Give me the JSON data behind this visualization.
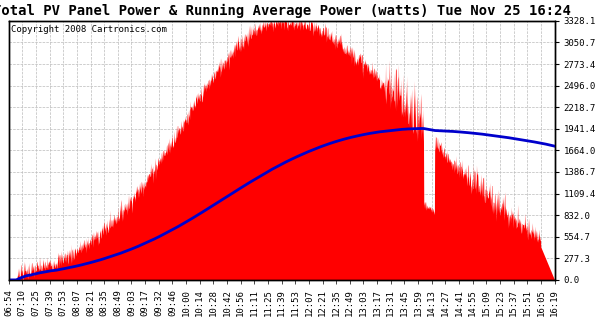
{
  "title": "Total PV Panel Power & Running Average Power (watts) Tue Nov 25 16:24",
  "copyright": "Copyright 2008 Cartronics.com",
  "yticks": [
    0.0,
    277.3,
    554.7,
    832.0,
    1109.4,
    1386.7,
    1664.0,
    1941.4,
    2218.7,
    2496.0,
    2773.4,
    3050.7,
    3328.1
  ],
  "xtick_labels": [
    "06:54",
    "07:10",
    "07:25",
    "07:39",
    "07:53",
    "08:07",
    "08:21",
    "08:35",
    "08:49",
    "09:03",
    "09:17",
    "09:32",
    "09:46",
    "10:00",
    "10:14",
    "10:28",
    "10:42",
    "10:56",
    "11:11",
    "11:25",
    "11:39",
    "11:53",
    "12:07",
    "12:21",
    "12:35",
    "12:49",
    "13:03",
    "13:17",
    "13:31",
    "13:45",
    "13:59",
    "14:13",
    "14:27",
    "14:41",
    "14:55",
    "15:09",
    "15:23",
    "15:37",
    "15:51",
    "16:05",
    "16:19"
  ],
  "ymax": 3328.1,
  "ymin": 0.0,
  "fill_color": "#FF0000",
  "line_color": "#0000CC",
  "background_color": "#FFFFFF",
  "grid_color": "#BBBBBB",
  "title_fontsize": 10,
  "copyright_fontsize": 6.5,
  "tick_fontsize": 6.5
}
